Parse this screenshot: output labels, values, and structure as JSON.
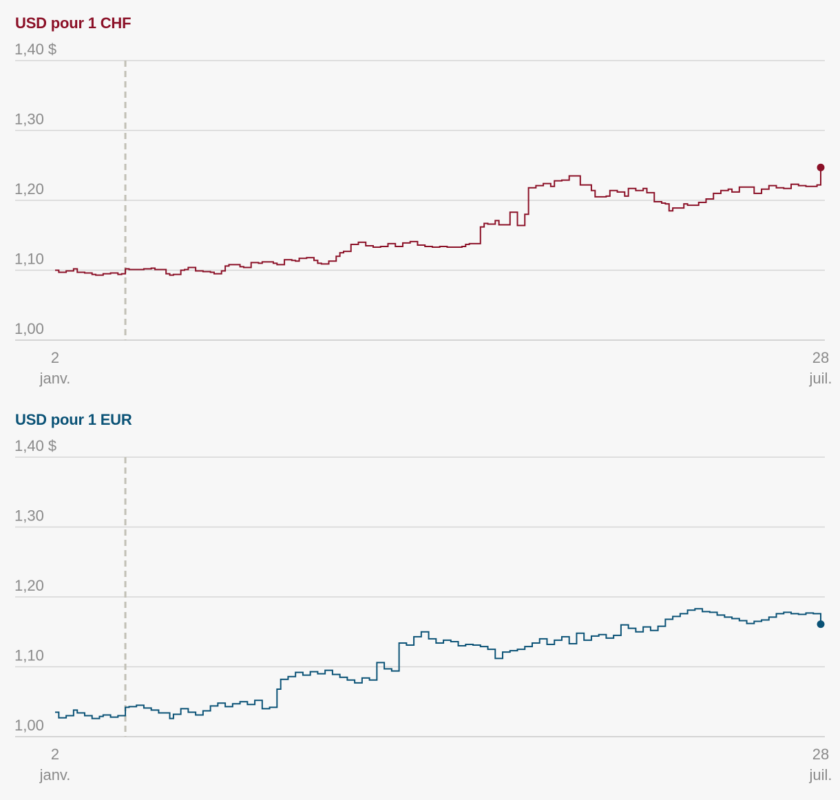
{
  "chart_data": [
    {
      "type": "line",
      "title": "USD pour 1 CHF",
      "color": "#8b1027",
      "y_unit_label": "$",
      "ylim": [
        1.0,
        1.4
      ],
      "yticks": [
        1.0,
        1.1,
        1.2,
        1.3,
        1.4
      ],
      "ytick_labels": [
        "1,00",
        "1,10",
        "1,20",
        "1,30",
        "1,40"
      ],
      "x_range_days": [
        0,
        207
      ],
      "x_tick_days": [
        0,
        207
      ],
      "xtick_labels": [
        [
          "2",
          "janv."
        ],
        [
          "28",
          "juil."
        ]
      ],
      "event_day": 19,
      "series": [
        {
          "name": "USD pour 1 CHF",
          "step": true,
          "x": [
            0,
            1,
            3,
            5,
            6,
            8,
            10,
            11,
            13,
            15,
            17,
            18,
            19,
            20,
            22,
            24,
            26,
            27,
            30,
            31,
            32,
            34,
            35,
            36,
            38,
            40,
            42,
            43,
            45,
            46,
            47,
            50,
            51,
            53,
            55,
            56,
            59,
            60,
            62,
            64,
            65,
            66,
            68,
            70,
            71,
            72,
            74,
            76,
            77,
            78,
            80,
            82,
            84,
            86,
            88,
            90,
            92,
            94,
            96,
            98,
            100,
            102,
            104,
            106,
            108,
            110,
            111,
            112,
            113,
            115,
            116,
            117,
            119,
            120,
            123,
            125,
            127,
            128,
            130,
            132,
            134,
            135,
            137,
            139,
            140,
            142,
            145,
            146,
            149,
            150,
            152,
            154,
            155,
            157,
            159,
            160,
            162,
            164,
            165,
            166,
            167,
            170,
            171,
            172,
            174,
            176,
            178,
            180,
            182,
            183,
            185,
            187,
            189,
            191,
            193,
            195,
            197,
            199,
            201,
            203,
            205,
            206,
            207
          ],
          "values": [
            1.1,
            1.097,
            1.099,
            1.102,
            1.097,
            1.096,
            1.094,
            1.093,
            1.095,
            1.096,
            1.094,
            1.095,
            1.102,
            1.101,
            1.101,
            1.102,
            1.103,
            1.101,
            1.095,
            1.093,
            1.094,
            1.1,
            1.101,
            1.104,
            1.099,
            1.098,
            1.097,
            1.095,
            1.099,
            1.106,
            1.108,
            1.105,
            1.104,
            1.111,
            1.11,
            1.112,
            1.11,
            1.108,
            1.115,
            1.114,
            1.113,
            1.117,
            1.118,
            1.114,
            1.11,
            1.109,
            1.113,
            1.12,
            1.125,
            1.127,
            1.137,
            1.14,
            1.135,
            1.133,
            1.134,
            1.138,
            1.134,
            1.139,
            1.141,
            1.136,
            1.134,
            1.133,
            1.134,
            1.133,
            1.133,
            1.134,
            1.137,
            1.138,
            1.138,
            1.162,
            1.167,
            1.166,
            1.171,
            1.165,
            1.183,
            1.164,
            1.18,
            1.218,
            1.221,
            1.224,
            1.22,
            1.228,
            1.229,
            1.235,
            1.235,
            1.222,
            1.214,
            1.205,
            1.206,
            1.214,
            1.212,
            1.206,
            1.217,
            1.214,
            1.217,
            1.211,
            1.198,
            1.196,
            1.195,
            1.185,
            1.189,
            1.195,
            1.193,
            1.193,
            1.197,
            1.202,
            1.21,
            1.214,
            1.216,
            1.212,
            1.219,
            1.219,
            1.21,
            1.216,
            1.221,
            1.218,
            1.217,
            1.223,
            1.221,
            1.22,
            1.22,
            1.222,
            1.247
          ]
        }
      ]
    },
    {
      "type": "line",
      "title": "USD pour 1 EUR",
      "color": "#0a5276",
      "y_unit_label": "$",
      "ylim": [
        1.0,
        1.4
      ],
      "yticks": [
        1.0,
        1.1,
        1.2,
        1.3,
        1.4
      ],
      "ytick_labels": [
        "1,00",
        "1,10",
        "1,20",
        "1,30",
        "1,40"
      ],
      "x_range_days": [
        0,
        207
      ],
      "x_tick_days": [
        0,
        207
      ],
      "xtick_labels": [
        [
          "2",
          "janv."
        ],
        [
          "28",
          "juil."
        ]
      ],
      "event_day": 19,
      "series": [
        {
          "name": "USD pour 1 EUR",
          "step": true,
          "x": [
            0,
            1,
            3,
            5,
            6,
            8,
            10,
            12,
            13,
            15,
            17,
            19,
            20,
            22,
            24,
            26,
            28,
            31,
            32,
            34,
            36,
            38,
            40,
            42,
            44,
            46,
            48,
            50,
            52,
            54,
            56,
            58,
            60,
            61,
            63,
            65,
            67,
            69,
            71,
            73,
            75,
            77,
            79,
            81,
            83,
            85,
            87,
            89,
            91,
            93,
            95,
            97,
            99,
            101,
            103,
            105,
            107,
            109,
            111,
            113,
            115,
            117,
            119,
            121,
            123,
            125,
            127,
            129,
            131,
            133,
            135,
            137,
            139,
            141,
            143,
            145,
            147,
            149,
            151,
            153,
            155,
            157,
            159,
            161,
            163,
            165,
            167,
            169,
            171,
            173,
            175,
            177,
            179,
            181,
            183,
            185,
            187,
            189,
            191,
            193,
            195,
            197,
            199,
            201,
            203,
            205,
            207
          ],
          "values": [
            1.035,
            1.027,
            1.03,
            1.038,
            1.034,
            1.03,
            1.026,
            1.029,
            1.031,
            1.028,
            1.03,
            1.042,
            1.043,
            1.045,
            1.041,
            1.038,
            1.034,
            1.026,
            1.032,
            1.04,
            1.035,
            1.031,
            1.037,
            1.044,
            1.048,
            1.043,
            1.047,
            1.05,
            1.046,
            1.052,
            1.04,
            1.042,
            1.068,
            1.082,
            1.086,
            1.092,
            1.088,
            1.093,
            1.09,
            1.095,
            1.089,
            1.085,
            1.081,
            1.077,
            1.084,
            1.081,
            1.106,
            1.097,
            1.094,
            1.134,
            1.131,
            1.143,
            1.15,
            1.14,
            1.134,
            1.138,
            1.136,
            1.13,
            1.132,
            1.131,
            1.129,
            1.125,
            1.112,
            1.121,
            1.123,
            1.125,
            1.129,
            1.134,
            1.14,
            1.132,
            1.138,
            1.143,
            1.133,
            1.148,
            1.138,
            1.144,
            1.146,
            1.141,
            1.145,
            1.16,
            1.155,
            1.15,
            1.157,
            1.152,
            1.158,
            1.168,
            1.172,
            1.176,
            1.181,
            1.183,
            1.179,
            1.178,
            1.174,
            1.171,
            1.169,
            1.166,
            1.162,
            1.165,
            1.167,
            1.171,
            1.176,
            1.178,
            1.176,
            1.175,
            1.177,
            1.176,
            1.161
          ]
        }
      ]
    }
  ]
}
